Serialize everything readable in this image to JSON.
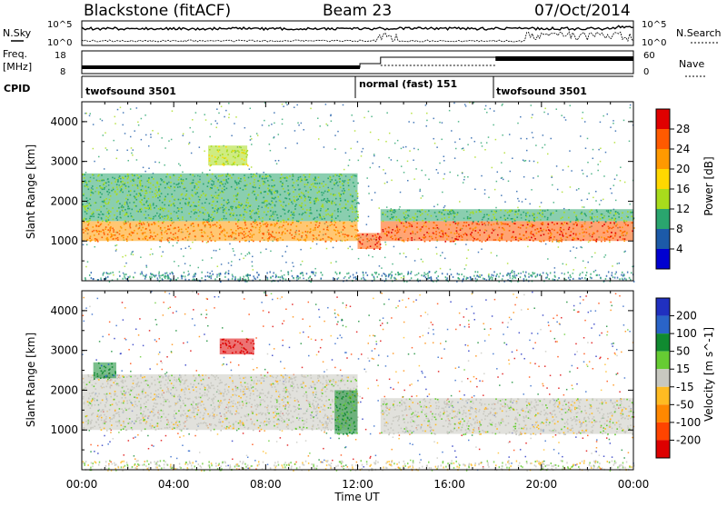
{
  "header": {
    "station": "Blackstone (fitACF)",
    "beam": "Beam 23",
    "date": "07/Oct/2014"
  },
  "noise_panel": {
    "left_label": "N.Sky",
    "right_label": "N.Search",
    "left_ticks": [
      "10^5",
      "10^0"
    ],
    "right_ticks": [
      "10^5",
      "10^0"
    ]
  },
  "freq_panel": {
    "left_label": "Freq.",
    "left_unit": "[MHz]",
    "left_ticks": [
      "18",
      "8"
    ],
    "right_label": "Nave",
    "right_ticks": [
      "60",
      "0"
    ]
  },
  "cpid_panel": {
    "label": "CPID",
    "segments": [
      {
        "name": "twofsound 3501",
        "start": 0.0,
        "end": 12.0
      },
      {
        "name": "normal (fast) 151",
        "start": 12.0,
        "end": 18.0
      },
      {
        "name": "twofsound 3501",
        "start": 18.0,
        "end": 24.0
      }
    ]
  },
  "power_colorbar": {
    "label": "Power [dB]",
    "ticks": [
      "28",
      "24",
      "20",
      "16",
      "12",
      "8",
      "4"
    ],
    "colors": [
      "#e00000",
      "#ff5a00",
      "#ff9900",
      "#ffd800",
      "#a8dc1c",
      "#2aa56e",
      "#1c5aa8",
      "#0000d0"
    ]
  },
  "velocity_colorbar": {
    "label": "Velocity [m s^-1]",
    "ticks": [
      "200",
      "100",
      "50",
      "15",
      "-15",
      "-50",
      "-100",
      "-200"
    ],
    "colors": [
      "#2030c0",
      "#2a64c8",
      "#108a30",
      "#66cc33",
      "#c8c8c0",
      "#ffbb22",
      "#ff8800",
      "#ff4400",
      "#dd0000"
    ]
  },
  "axes": {
    "ylabel": "Slant Range [km]",
    "y_ticks": [
      "4000",
      "3000",
      "2000",
      "1000"
    ],
    "x_ticks": [
      "00:00",
      "04:00",
      "08:00",
      "12:00",
      "16:00",
      "20:00",
      "00:00"
    ],
    "xlabel": "Time UT"
  },
  "chart_data": [
    {
      "type": "heatmap",
      "title": "",
      "quantity": "Power [dB]",
      "x_range_hours": [
        0,
        24
      ],
      "ylim": [
        0,
        4500
      ],
      "ylabel": "Slant Range [km]",
      "xlabel": "Time UT",
      "echo_bands": [
        {
          "t0": 0.0,
          "t1": 12.0,
          "range_km": [
            1000,
            1500
          ],
          "power_db": 24
        },
        {
          "t0": 0.0,
          "t1": 12.0,
          "range_km": [
            1500,
            2700
          ],
          "power_db": 12
        },
        {
          "t0": 5.5,
          "t1": 7.2,
          "range_km": [
            2900,
            3400
          ],
          "power_db": 16
        },
        {
          "t0": 12.0,
          "t1": 13.0,
          "range_km": [
            800,
            1200
          ],
          "power_db": 28
        },
        {
          "t0": 13.0,
          "t1": 24.0,
          "range_km": [
            1000,
            1500
          ],
          "power_db": 26
        },
        {
          "t0": 13.0,
          "t1": 24.0,
          "range_km": [
            1500,
            1800
          ],
          "power_db": 12
        }
      ]
    },
    {
      "type": "heatmap",
      "title": "",
      "quantity": "Velocity [m s^-1]",
      "x_range_hours": [
        0,
        24
      ],
      "ylim": [
        0,
        4500
      ],
      "ylabel": "Slant Range [km]",
      "xlabel": "Time UT",
      "echo_bands": [
        {
          "t0": 0.0,
          "t1": 12.0,
          "range_km": [
            1000,
            2400
          ],
          "velocity": 0
        },
        {
          "t0": 0.5,
          "t1": 1.5,
          "range_km": [
            2300,
            2700
          ],
          "velocity": 60
        },
        {
          "t0": 6.0,
          "t1": 7.5,
          "range_km": [
            2900,
            3300
          ],
          "velocity": -200
        },
        {
          "t0": 11.0,
          "t1": 12.0,
          "range_km": [
            900,
            2000
          ],
          "velocity": 40
        },
        {
          "t0": 13.0,
          "t1": 24.0,
          "range_km": [
            900,
            1800
          ],
          "velocity": 0
        }
      ]
    }
  ]
}
